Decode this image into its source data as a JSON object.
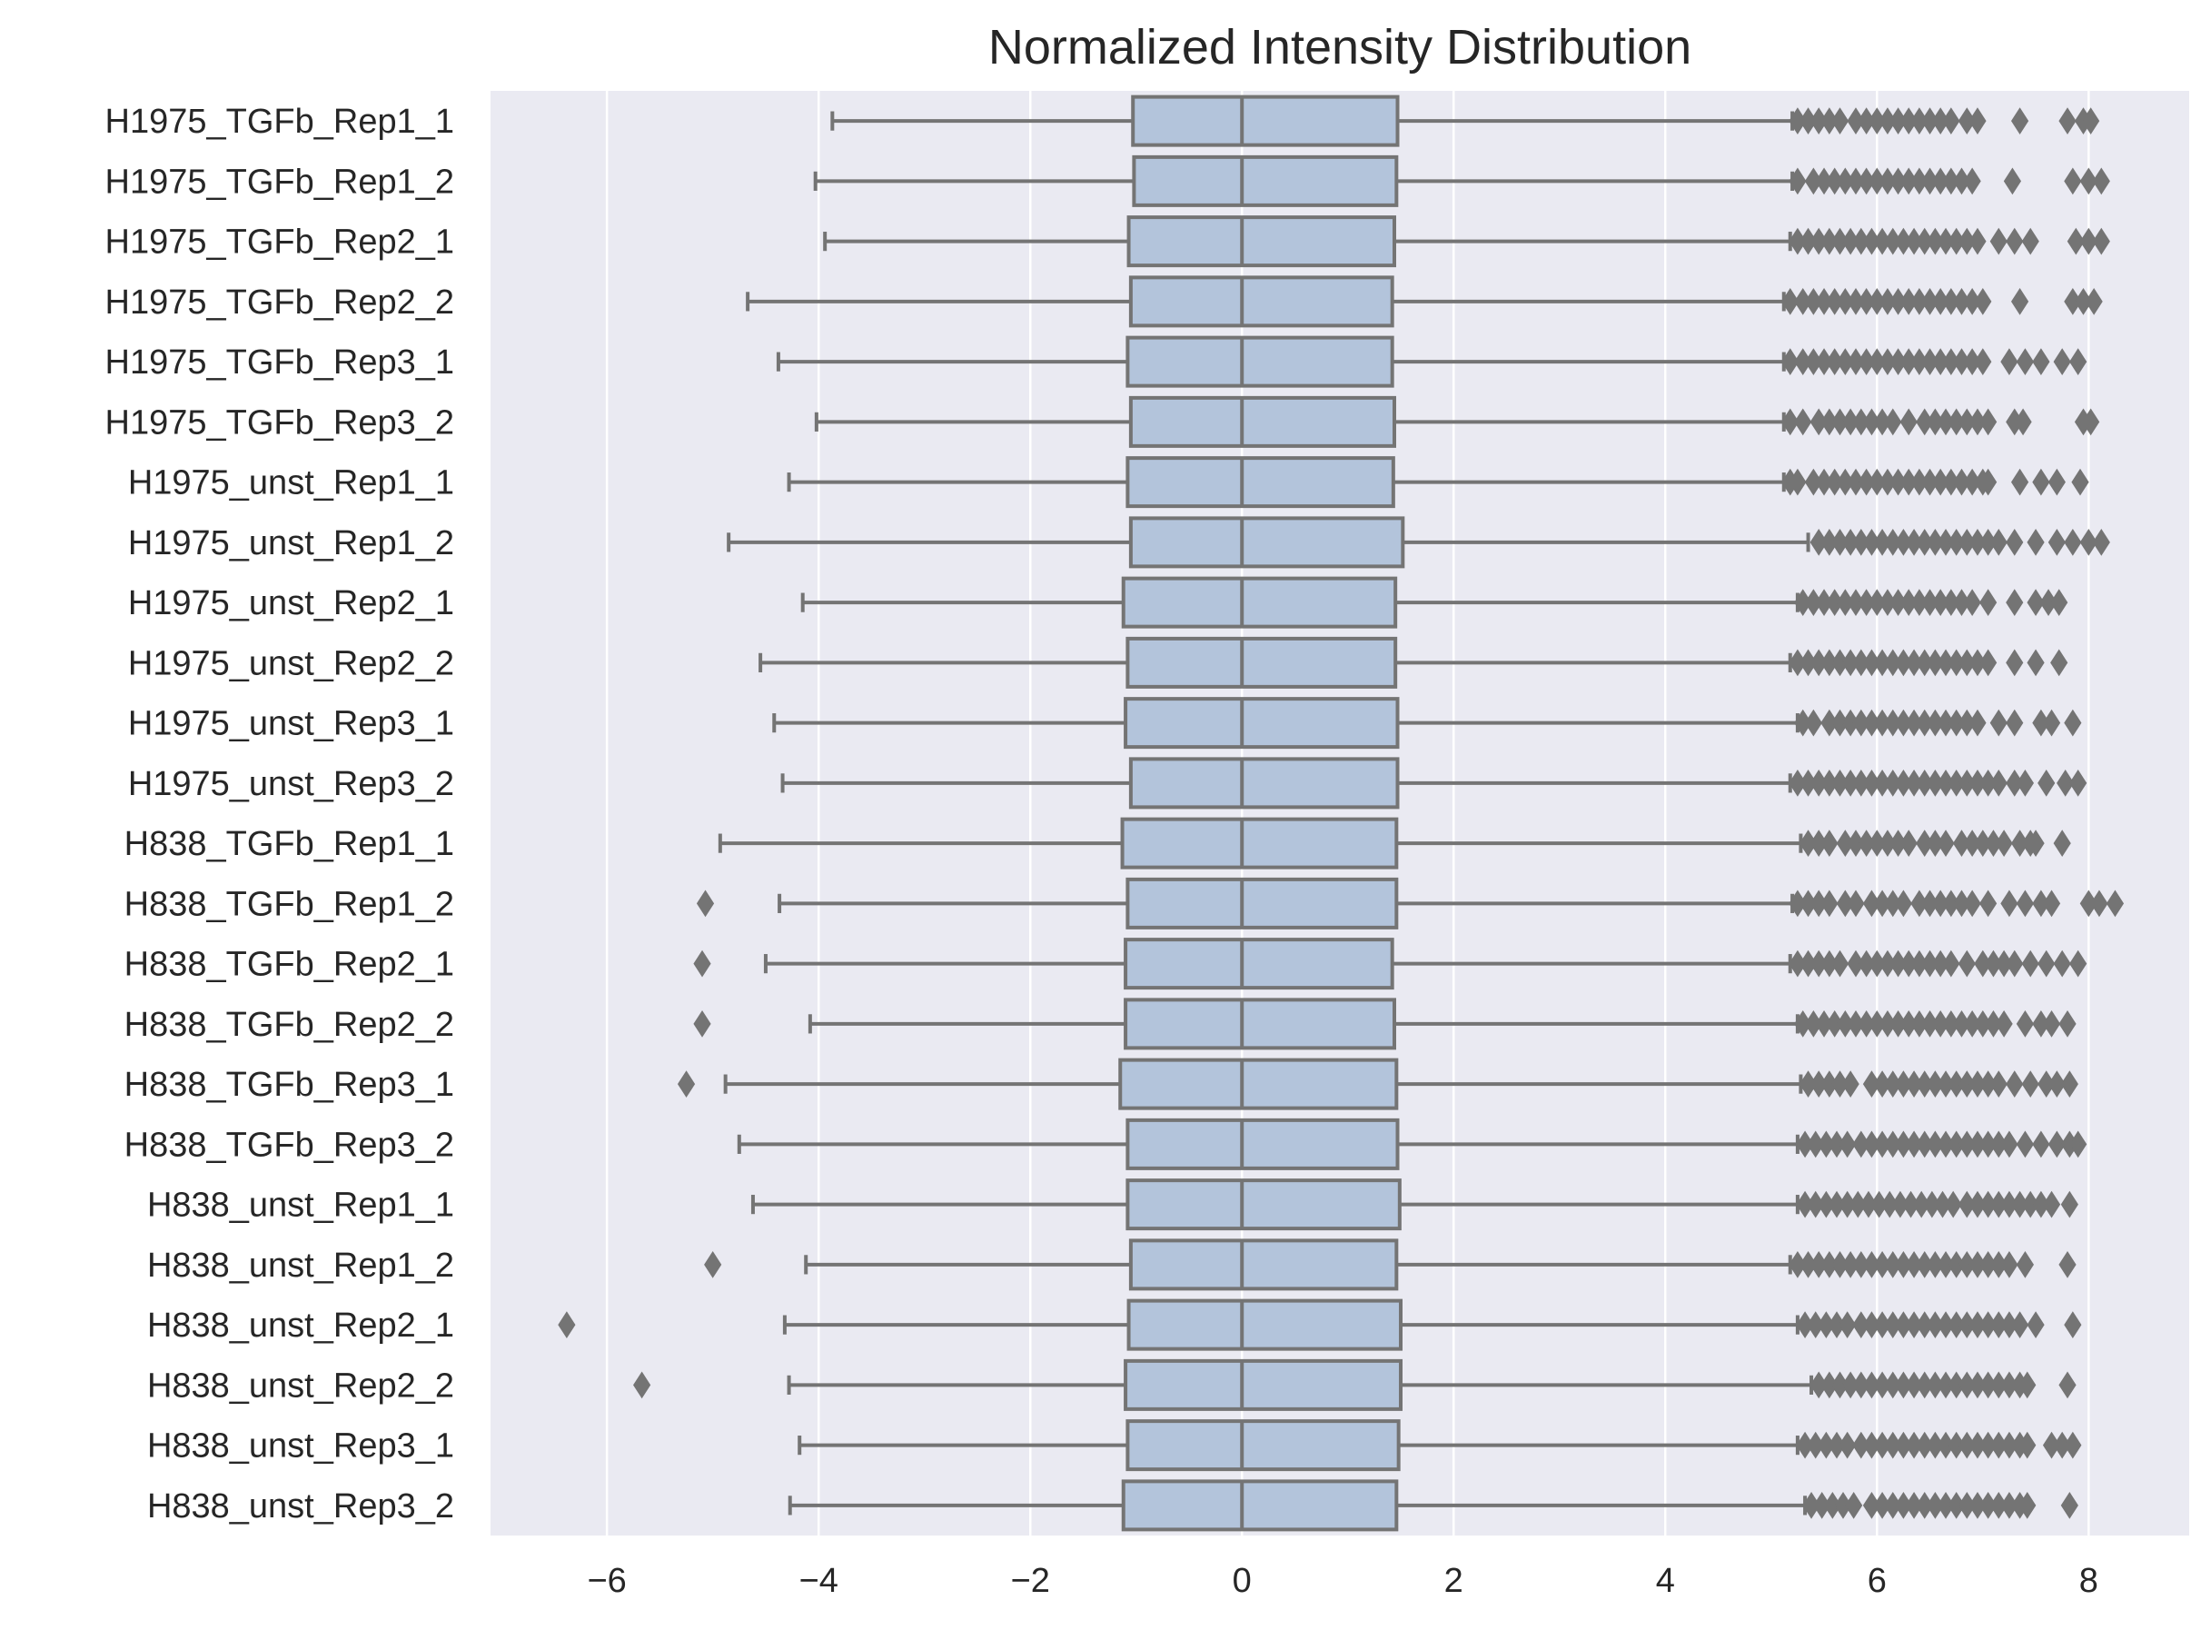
{
  "chart_data": {
    "type": "box",
    "orientation": "horizontal",
    "title": "Normalized Intensity Distribution",
    "xlabel": "",
    "ylabel": "",
    "xlim": [
      -7.1,
      8.95
    ],
    "xticks": [
      -6,
      -4,
      -2,
      0,
      2,
      4,
      6,
      8
    ],
    "xtick_labels": [
      "−6",
      "−4",
      "−2",
      "0",
      "2",
      "4",
      "6",
      "8"
    ],
    "grid": true,
    "background": "#eaeaf2",
    "box_color": "#b3c4db",
    "line_color": "#747474",
    "categories": [
      "H1975_TGFb_Rep1_1",
      "H1975_TGFb_Rep1_2",
      "H1975_TGFb_Rep2_1",
      "H1975_TGFb_Rep2_2",
      "H1975_TGFb_Rep3_1",
      "H1975_TGFb_Rep3_2",
      "H1975_unst_Rep1_1",
      "H1975_unst_Rep1_2",
      "H1975_unst_Rep2_1",
      "H1975_unst_Rep2_2",
      "H1975_unst_Rep3_1",
      "H1975_unst_Rep3_2",
      "H838_TGFb_Rep1_1",
      "H838_TGFb_Rep1_2",
      "H838_TGFb_Rep2_1",
      "H838_TGFb_Rep2_2",
      "H838_TGFb_Rep3_1",
      "H838_TGFb_Rep3_2",
      "H838_unst_Rep1_1",
      "H838_unst_Rep1_2",
      "H838_unst_Rep2_1",
      "H838_unst_Rep2_2",
      "H838_unst_Rep3_1",
      "H838_unst_Rep3_2"
    ],
    "boxes": [
      {
        "whislo": -3.87,
        "q1": -1.03,
        "med": 0.0,
        "q3": 1.47,
        "whishi": 5.2,
        "fliers": [
          5.25,
          5.35,
          5.45,
          5.55,
          5.65,
          5.8,
          5.9,
          6.0,
          6.1,
          6.2,
          6.3,
          6.4,
          6.5,
          6.6,
          6.7,
          6.85,
          6.95,
          7.35,
          7.8,
          7.95,
          8.02
        ]
      },
      {
        "whislo": -4.03,
        "q1": -1.02,
        "med": 0.0,
        "q3": 1.46,
        "whishi": 5.2,
        "fliers": [
          5.25,
          5.4,
          5.5,
          5.6,
          5.7,
          5.8,
          5.9,
          6.0,
          6.1,
          6.2,
          6.3,
          6.4,
          6.5,
          6.6,
          6.7,
          6.8,
          6.9,
          7.28,
          7.85,
          8.0,
          8.12
        ]
      },
      {
        "whislo": -3.94,
        "q1": -1.07,
        "med": 0.0,
        "q3": 1.44,
        "whishi": 5.18,
        "fliers": [
          5.25,
          5.35,
          5.45,
          5.55,
          5.65,
          5.75,
          5.85,
          5.95,
          6.05,
          6.15,
          6.25,
          6.35,
          6.45,
          6.55,
          6.65,
          6.75,
          6.85,
          6.95,
          7.15,
          7.3,
          7.45,
          7.88,
          8.0,
          8.12
        ]
      },
      {
        "whislo": -4.67,
        "q1": -1.05,
        "med": 0.0,
        "q3": 1.42,
        "whishi": 5.12,
        "fliers": [
          5.18,
          5.3,
          5.4,
          5.5,
          5.6,
          5.7,
          5.8,
          5.9,
          6.0,
          6.1,
          6.2,
          6.3,
          6.4,
          6.5,
          6.6,
          6.7,
          6.8,
          6.9,
          7.0,
          7.35,
          7.85,
          7.95,
          8.05
        ]
      },
      {
        "whislo": -4.38,
        "q1": -1.08,
        "med": 0.0,
        "q3": 1.42,
        "whishi": 5.12,
        "fliers": [
          5.18,
          5.3,
          5.4,
          5.5,
          5.6,
          5.7,
          5.8,
          5.9,
          6.0,
          6.1,
          6.2,
          6.3,
          6.4,
          6.5,
          6.6,
          6.7,
          6.8,
          6.9,
          7.0,
          7.25,
          7.4,
          7.55,
          7.75,
          7.9
        ]
      },
      {
        "whislo": -4.02,
        "q1": -1.05,
        "med": 0.0,
        "q3": 1.44,
        "whishi": 5.12,
        "fliers": [
          5.18,
          5.3,
          5.45,
          5.55,
          5.65,
          5.75,
          5.85,
          5.95,
          6.05,
          6.15,
          6.3,
          6.45,
          6.55,
          6.65,
          6.75,
          6.85,
          6.95,
          7.05,
          7.3,
          7.38,
          7.95,
          8.02
        ]
      },
      {
        "whislo": -4.28,
        "q1": -1.08,
        "med": 0.0,
        "q3": 1.43,
        "whishi": 5.12,
        "fliers": [
          5.18,
          5.25,
          5.4,
          5.5,
          5.6,
          5.7,
          5.8,
          5.9,
          6.0,
          6.1,
          6.2,
          6.3,
          6.4,
          6.5,
          6.6,
          6.7,
          6.8,
          6.9,
          7.0,
          7.05,
          7.35,
          7.55,
          7.7,
          7.92
        ]
      },
      {
        "whislo": -4.85,
        "q1": -1.05,
        "med": 0.0,
        "q3": 1.52,
        "whishi": 5.35,
        "fliers": [
          5.45,
          5.55,
          5.65,
          5.75,
          5.85,
          5.95,
          6.05,
          6.15,
          6.25,
          6.35,
          6.45,
          6.55,
          6.65,
          6.75,
          6.85,
          6.95,
          7.05,
          7.15,
          7.3,
          7.5,
          7.7,
          7.85,
          8.0,
          8.12
        ]
      },
      {
        "whislo": -4.15,
        "q1": -1.12,
        "med": 0.0,
        "q3": 1.45,
        "whishi": 5.25,
        "fliers": [
          5.3,
          5.4,
          5.5,
          5.6,
          5.7,
          5.8,
          5.9,
          6.0,
          6.1,
          6.2,
          6.3,
          6.4,
          6.5,
          6.6,
          6.7,
          6.8,
          6.9,
          7.05,
          7.3,
          7.5,
          7.62,
          7.72
        ]
      },
      {
        "whislo": -4.55,
        "q1": -1.08,
        "med": 0.0,
        "q3": 1.45,
        "whishi": 5.18,
        "fliers": [
          5.25,
          5.35,
          5.45,
          5.55,
          5.65,
          5.75,
          5.85,
          5.95,
          6.05,
          6.15,
          6.25,
          6.35,
          6.45,
          6.55,
          6.65,
          6.75,
          6.85,
          6.95,
          7.05,
          7.3,
          7.5,
          7.72
        ]
      },
      {
        "whislo": -4.42,
        "q1": -1.1,
        "med": 0.0,
        "q3": 1.47,
        "whishi": 5.25,
        "fliers": [
          5.3,
          5.4,
          5.55,
          5.65,
          5.75,
          5.85,
          5.95,
          6.05,
          6.15,
          6.25,
          6.35,
          6.45,
          6.55,
          6.65,
          6.75,
          6.85,
          6.95,
          7.15,
          7.3,
          7.55,
          7.65,
          7.85
        ]
      },
      {
        "whislo": -4.34,
        "q1": -1.05,
        "med": 0.0,
        "q3": 1.47,
        "whishi": 5.18,
        "fliers": [
          5.25,
          5.35,
          5.45,
          5.55,
          5.65,
          5.75,
          5.85,
          5.95,
          6.05,
          6.15,
          6.25,
          6.35,
          6.45,
          6.55,
          6.65,
          6.75,
          6.85,
          6.95,
          7.05,
          7.15,
          7.3,
          7.4,
          7.6,
          7.78,
          7.9
        ]
      },
      {
        "whislo": -4.93,
        "q1": -1.13,
        "med": 0.0,
        "q3": 1.46,
        "whishi": 5.28,
        "fliers": [
          5.35,
          5.45,
          5.55,
          5.7,
          5.8,
          5.9,
          6.0,
          6.1,
          6.2,
          6.3,
          6.45,
          6.55,
          6.65,
          6.8,
          6.9,
          7.0,
          7.1,
          7.2,
          7.35,
          7.45,
          7.5,
          7.75
        ]
      },
      {
        "whislo": -4.37,
        "q1": -1.08,
        "med": 0.0,
        "q3": 1.46,
        "whishi": 5.2,
        "fliers": [
          -5.07,
          5.25,
          5.35,
          5.45,
          5.55,
          5.7,
          5.8,
          5.95,
          6.05,
          6.15,
          6.25,
          6.4,
          6.5,
          6.6,
          6.7,
          6.8,
          6.9,
          7.05,
          7.25,
          7.4,
          7.55,
          7.65,
          8.0,
          8.1,
          8.25
        ]
      },
      {
        "whislo": -4.5,
        "q1": -1.1,
        "med": 0.0,
        "q3": 1.42,
        "whishi": 5.18,
        "fliers": [
          -5.1,
          5.25,
          5.35,
          5.45,
          5.55,
          5.65,
          5.8,
          5.9,
          6.0,
          6.1,
          6.2,
          6.3,
          6.4,
          6.5,
          6.6,
          6.7,
          6.85,
          7.0,
          7.1,
          7.2,
          7.3,
          7.45,
          7.6,
          7.75,
          7.9
        ]
      },
      {
        "whislo": -4.08,
        "q1": -1.1,
        "med": 0.0,
        "q3": 1.44,
        "whishi": 5.25,
        "fliers": [
          -5.1,
          5.3,
          5.4,
          5.5,
          5.6,
          5.7,
          5.8,
          5.9,
          6.0,
          6.1,
          6.2,
          6.3,
          6.4,
          6.5,
          6.6,
          6.7,
          6.8,
          6.9,
          7.0,
          7.1,
          7.2,
          7.4,
          7.55,
          7.65,
          7.8
        ]
      },
      {
        "whislo": -4.88,
        "q1": -1.15,
        "med": 0.0,
        "q3": 1.46,
        "whishi": 5.28,
        "fliers": [
          -5.25,
          5.35,
          5.45,
          5.55,
          5.65,
          5.75,
          5.95,
          6.05,
          6.15,
          6.25,
          6.35,
          6.45,
          6.55,
          6.65,
          6.75,
          6.85,
          6.95,
          7.05,
          7.15,
          7.3,
          7.45,
          7.6,
          7.7,
          7.82
        ]
      },
      {
        "whislo": -4.75,
        "q1": -1.08,
        "med": 0.0,
        "q3": 1.47,
        "whishi": 5.25,
        "fliers": [
          5.32,
          5.42,
          5.52,
          5.62,
          5.72,
          5.85,
          5.95,
          6.05,
          6.15,
          6.25,
          6.35,
          6.45,
          6.55,
          6.65,
          6.75,
          6.85,
          6.95,
          7.05,
          7.15,
          7.25,
          7.4,
          7.55,
          7.7,
          7.82,
          7.9
        ]
      },
      {
        "whislo": -4.62,
        "q1": -1.08,
        "med": 0.0,
        "q3": 1.49,
        "whishi": 5.25,
        "fliers": [
          5.32,
          5.42,
          5.52,
          5.62,
          5.72,
          5.82,
          5.92,
          6.02,
          6.12,
          6.22,
          6.32,
          6.42,
          6.52,
          6.62,
          6.72,
          6.85,
          6.95,
          7.05,
          7.15,
          7.25,
          7.35,
          7.45,
          7.55,
          7.65,
          7.82
        ]
      },
      {
        "whislo": -4.12,
        "q1": -1.05,
        "med": 0.0,
        "q3": 1.46,
        "whishi": 5.18,
        "fliers": [
          -5.0,
          5.25,
          5.35,
          5.45,
          5.55,
          5.65,
          5.75,
          5.85,
          5.95,
          6.05,
          6.15,
          6.25,
          6.35,
          6.45,
          6.55,
          6.65,
          6.75,
          6.85,
          6.95,
          7.05,
          7.15,
          7.25,
          7.4,
          7.8
        ]
      },
      {
        "whislo": -4.32,
        "q1": -1.07,
        "med": 0.0,
        "q3": 1.5,
        "whishi": 5.25,
        "fliers": [
          -6.38,
          5.32,
          5.42,
          5.52,
          5.62,
          5.72,
          5.85,
          5.95,
          6.05,
          6.15,
          6.25,
          6.35,
          6.45,
          6.55,
          6.65,
          6.75,
          6.85,
          6.95,
          7.05,
          7.15,
          7.25,
          7.35,
          7.5,
          7.85
        ]
      },
      {
        "whislo": -4.28,
        "q1": -1.1,
        "med": 0.0,
        "q3": 1.5,
        "whishi": 5.38,
        "fliers": [
          -5.67,
          5.45,
          5.55,
          5.65,
          5.75,
          5.85,
          5.95,
          6.05,
          6.15,
          6.25,
          6.35,
          6.45,
          6.55,
          6.65,
          6.75,
          6.85,
          6.95,
          7.05,
          7.15,
          7.25,
          7.35,
          7.42,
          7.8
        ]
      },
      {
        "whislo": -4.18,
        "q1": -1.08,
        "med": 0.0,
        "q3": 1.48,
        "whishi": 5.25,
        "fliers": [
          5.32,
          5.42,
          5.52,
          5.62,
          5.72,
          5.85,
          5.95,
          6.05,
          6.15,
          6.25,
          6.35,
          6.45,
          6.55,
          6.65,
          6.75,
          6.85,
          6.95,
          7.05,
          7.15,
          7.25,
          7.35,
          7.42,
          7.65,
          7.75,
          7.85
        ]
      },
      {
        "whislo": -4.27,
        "q1": -1.12,
        "med": 0.0,
        "q3": 1.46,
        "whishi": 5.32,
        "fliers": [
          5.38,
          5.48,
          5.58,
          5.68,
          5.78,
          5.95,
          6.05,
          6.15,
          6.25,
          6.35,
          6.45,
          6.55,
          6.65,
          6.75,
          6.85,
          6.95,
          7.05,
          7.15,
          7.25,
          7.35,
          7.42,
          7.82
        ]
      }
    ]
  }
}
